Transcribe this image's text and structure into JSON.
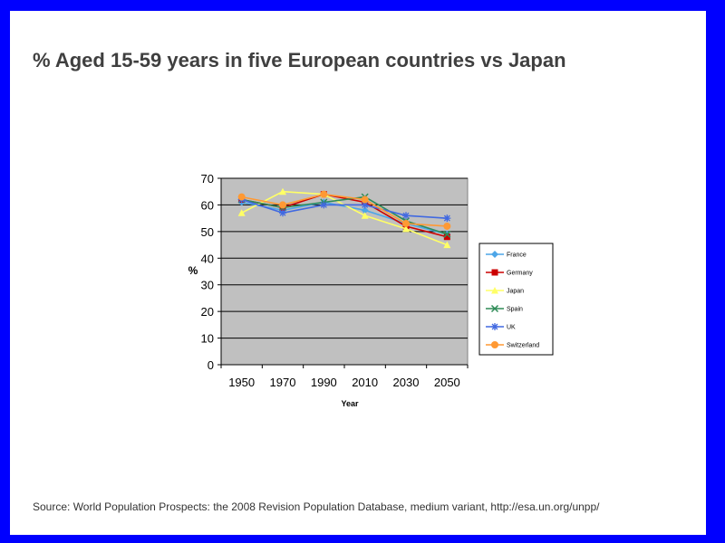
{
  "slide": {
    "title": "% Aged 15-59 years in five European countries vs Japan",
    "source": "Source: World Population Prospects: the 2008 Revision Population Database, medium variant, http://esa.un.org/unpp/"
  },
  "chart_data": {
    "type": "line",
    "title": "",
    "xlabel": "Year",
    "ylabel": "%",
    "categories": [
      "1950",
      "1970",
      "1990",
      "2010",
      "2030",
      "2050"
    ],
    "ylim": [
      0,
      70
    ],
    "yticks": [
      0,
      10,
      20,
      30,
      40,
      50,
      60,
      70
    ],
    "grid": true,
    "plot_background": "#c0c0c0",
    "legend_position": "right",
    "series": [
      {
        "name": "France",
        "color": "#4da6e8",
        "marker": "diamond",
        "values": [
          61,
          58,
          61,
          58,
          53,
          49
        ]
      },
      {
        "name": "Germany",
        "color": "#cc0000",
        "marker": "square",
        "values": [
          62,
          59,
          64,
          61,
          52,
          48
        ]
      },
      {
        "name": "Japan",
        "color": "#ffff66",
        "marker": "triangle",
        "values": [
          57,
          65,
          64,
          56,
          51,
          45
        ]
      },
      {
        "name": "Spain",
        "color": "#2e8b57",
        "marker": "x",
        "values": [
          62,
          59,
          61,
          63,
          54,
          49
        ]
      },
      {
        "name": "UK",
        "color": "#4169e1",
        "marker": "star",
        "values": [
          62,
          57,
          60,
          60,
          56,
          55
        ]
      },
      {
        "name": "Switzerland",
        "color": "#ff9933",
        "marker": "circle",
        "values": [
          63,
          60,
          64,
          62,
          53,
          52
        ]
      }
    ]
  }
}
